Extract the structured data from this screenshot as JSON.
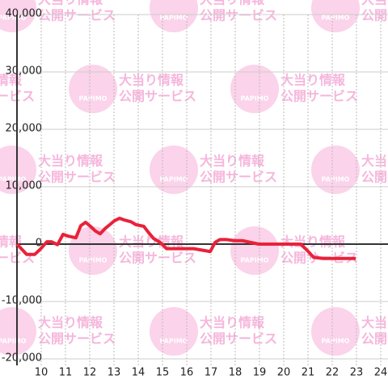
{
  "chart_data": {
    "type": "line",
    "x": [
      9,
      9.4,
      9.73,
      9.97,
      10.23,
      10.43,
      10.67,
      10.9,
      11.1,
      11.43,
      11.63,
      11.83,
      12.03,
      12.23,
      12.43,
      12.63,
      12.83,
      13.03,
      13.23,
      13.43,
      13.7,
      13.9,
      14.23,
      14.43,
      14.63,
      14.9,
      15.17,
      15.63,
      16.3,
      16.57,
      16.97,
      17.17,
      17.37,
      17.63,
      17.97,
      18.3,
      18.63,
      18.97,
      20.7,
      20.97,
      21.23,
      21.63,
      22.97
    ],
    "series": [
      {
        "color": "#e8223a",
        "values": [
          0,
          -1800,
          -1800,
          -850,
          400,
          400,
          -100,
          1700,
          1400,
          1100,
          3200,
          3800,
          3100,
          2300,
          1800,
          2700,
          3400,
          4100,
          4500,
          4200,
          3900,
          3400,
          3100,
          2000,
          1000,
          300,
          -800,
          -800,
          -800,
          -1000,
          -1300,
          300,
          800,
          800,
          600,
          600,
          300,
          0,
          0,
          -1100,
          -2300,
          -2500,
          -2500
        ]
      }
    ],
    "xlim": [
      9,
      24.3
    ],
    "xticks": [
      10,
      11,
      12,
      13,
      14,
      15,
      16,
      17,
      18,
      19,
      20,
      21,
      22,
      23,
      24
    ],
    "ylim": [
      -20000,
      40000
    ],
    "yticks": [
      {
        "value": 40000,
        "label": "40,000"
      },
      {
        "value": 30000,
        "label": "30,000"
      },
      {
        "value": 20000,
        "label": "20,000"
      },
      {
        "value": 10000,
        "label": "10,000"
      },
      0,
      {
        "value": -10000,
        "label": "-10,000"
      },
      {
        "value": -20000,
        "label": "-20,000"
      }
    ],
    "grid": true,
    "watermark": {
      "brand": "PAPIMO",
      "line1": "大当り情報",
      "line2": "公開サービス"
    }
  }
}
